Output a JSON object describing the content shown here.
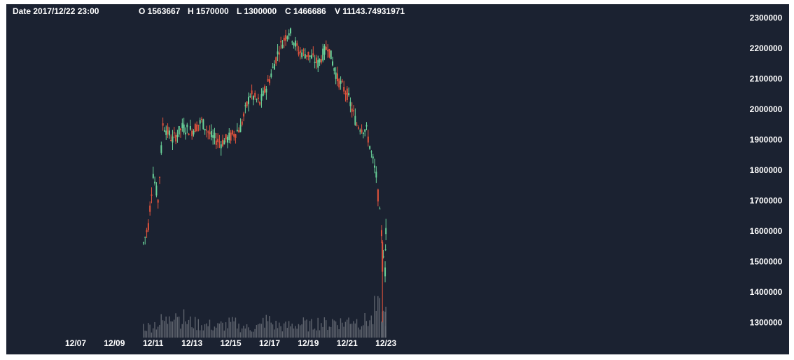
{
  "header": {
    "date": "Date 2017/12/22 23:00",
    "open": "O 1563667",
    "high": "H 1570000",
    "low": "L 1300000",
    "close": "C 1466686",
    "volume": "V 11143.74931971"
  },
  "colors": {
    "background": "#1b2231",
    "text": "#ffffff",
    "up": "#6ad39a",
    "down": "#e2533c",
    "volume": "#6b7079"
  },
  "chart_data": {
    "type": "candlestick",
    "title": "",
    "xlabel": "",
    "ylabel": "",
    "x_tick_labels": [
      "12/07",
      "12/09",
      "12/11",
      "12/13",
      "12/15",
      "12/17",
      "12/19",
      "12/21",
      "12/23"
    ],
    "y_tick_labels": [
      "2300000",
      "2200000",
      "2100000",
      "2000000",
      "1900000",
      "1800000",
      "1700000",
      "1600000",
      "1500000",
      "1400000",
      "1300000"
    ],
    "ylim": [
      1250000,
      2320000
    ],
    "grid": false,
    "series": [
      {
        "name": "price",
        "description": "Approximate close-price path per day (data units)",
        "points": [
          {
            "x": "12/10 12:00",
            "y": 1560000
          },
          {
            "x": "12/10 18:00",
            "y": 1620000
          },
          {
            "x": "12/11 00:00",
            "y": 1790000
          },
          {
            "x": "12/11 06:00",
            "y": 1700000
          },
          {
            "x": "12/11 12:00",
            "y": 1950000
          },
          {
            "x": "12/12 00:00",
            "y": 1900000
          },
          {
            "x": "12/12 12:00",
            "y": 1940000
          },
          {
            "x": "12/13 00:00",
            "y": 1930000
          },
          {
            "x": "12/13 12:00",
            "y": 1960000
          },
          {
            "x": "12/14 00:00",
            "y": 1910000
          },
          {
            "x": "12/14 12:00",
            "y": 1890000
          },
          {
            "x": "12/15 00:00",
            "y": 1910000
          },
          {
            "x": "12/15 12:00",
            "y": 1940000
          },
          {
            "x": "12/16 00:00",
            "y": 2050000
          },
          {
            "x": "12/16 12:00",
            "y": 2020000
          },
          {
            "x": "12/17 00:00",
            "y": 2100000
          },
          {
            "x": "12/17 12:00",
            "y": 2200000
          },
          {
            "x": "12/18 00:00",
            "y": 2260000
          },
          {
            "x": "12/18 12:00",
            "y": 2190000
          },
          {
            "x": "12/19 00:00",
            "y": 2180000
          },
          {
            "x": "12/19 12:00",
            "y": 2150000
          },
          {
            "x": "12/20 00:00",
            "y": 2210000
          },
          {
            "x": "12/20 12:00",
            "y": 2100000
          },
          {
            "x": "12/21 00:00",
            "y": 2050000
          },
          {
            "x": "12/21 12:00",
            "y": 1950000
          },
          {
            "x": "12/22 00:00",
            "y": 1930000
          },
          {
            "x": "12/22 12:00",
            "y": 1780000
          },
          {
            "x": "12/22 23:00",
            "y": 1466686
          },
          {
            "x": "12/23 00:00",
            "y": 1610000
          }
        ]
      }
    ],
    "volume_relative": [
      0.4,
      0.5,
      0.6,
      1.0,
      0.7,
      0.55,
      0.5,
      0.45,
      0.4,
      0.45,
      0.5,
      0.4,
      0.35,
      0.4,
      0.6,
      0.45,
      0.4,
      0.45,
      0.5,
      0.45,
      0.55,
      0.5,
      0.6,
      0.55,
      0.7,
      0.6,
      0.65,
      1.0,
      0.8
    ]
  }
}
